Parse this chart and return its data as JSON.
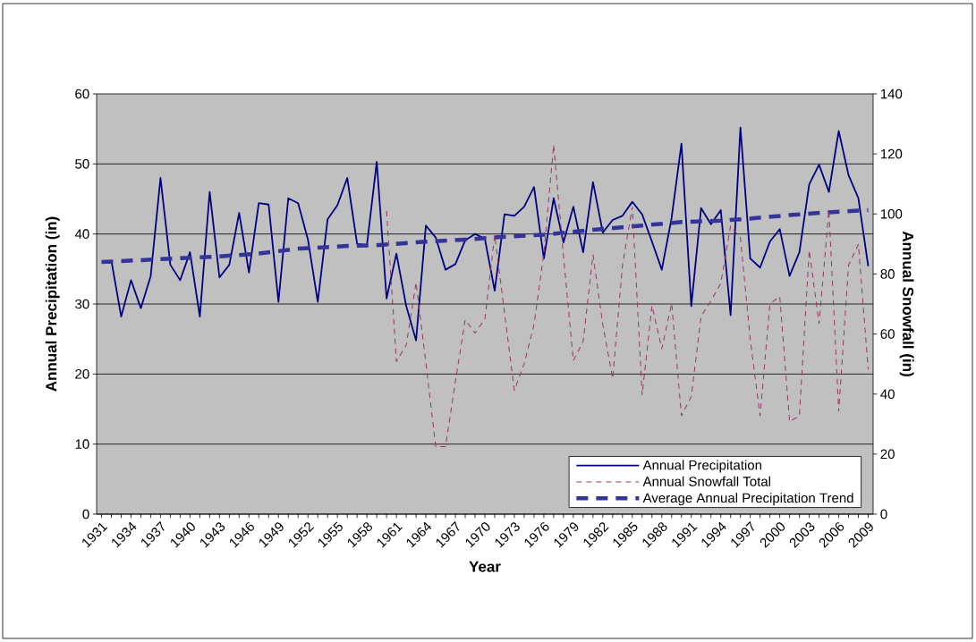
{
  "chart_data": {
    "type": "line",
    "xlabel": "Year",
    "ylabel": "Annual Precipitation (in)",
    "y2label": "Annual Snowfall (in)",
    "x": [
      1932,
      1933,
      1934,
      1935,
      1936,
      1937,
      1938,
      1939,
      1940,
      1941,
      1942,
      1943,
      1944,
      1945,
      1946,
      1947,
      1948,
      1949,
      1950,
      1951,
      1952,
      1953,
      1954,
      1955,
      1956,
      1957,
      1958,
      1959,
      1960,
      1961,
      1962,
      1963,
      1964,
      1965,
      1966,
      1967,
      1968,
      1969,
      1970,
      1971,
      1972,
      1973,
      1974,
      1975,
      1976,
      1977,
      1978,
      1979,
      1980,
      1981,
      1982,
      1983,
      1984,
      1985,
      1986,
      1987,
      1988,
      1989,
      1990,
      1991,
      1992,
      1993,
      1994,
      1995,
      1996,
      1997,
      1998,
      1999,
      2000,
      2001,
      2002,
      2003,
      2004,
      2005,
      2006,
      2007,
      2008,
      2009
    ],
    "xlim": [
      1930.5,
      2009.5
    ],
    "xticks": [
      1931,
      {
        "value": 1932,
        "label": null
      },
      {
        "value": 1933,
        "label": null
      },
      1934,
      {
        "value": 1935,
        "label": null
      },
      {
        "value": 1936,
        "label": null
      },
      1937,
      {
        "value": 1938,
        "label": null
      },
      {
        "value": 1939,
        "label": null
      },
      1940,
      {
        "value": 1941,
        "label": null
      },
      {
        "value": 1942,
        "label": null
      },
      1943,
      {
        "value": 1944,
        "label": null
      },
      {
        "value": 1945,
        "label": null
      },
      1946,
      {
        "value": 1947,
        "label": null
      },
      {
        "value": 1948,
        "label": null
      },
      1949,
      {
        "value": 1950,
        "label": null
      },
      {
        "value": 1951,
        "label": null
      },
      1952,
      {
        "value": 1953,
        "label": null
      },
      {
        "value": 1954,
        "label": null
      },
      1955,
      {
        "value": 1956,
        "label": null
      },
      {
        "value": 1957,
        "label": null
      },
      1958,
      {
        "value": 1959,
        "label": null
      },
      {
        "value": 1960,
        "label": null
      },
      1961,
      {
        "value": 1962,
        "label": null
      },
      {
        "value": 1963,
        "label": null
      },
      1964,
      {
        "value": 1965,
        "label": null
      },
      {
        "value": 1966,
        "label": null
      },
      1967,
      {
        "value": 1968,
        "label": null
      },
      {
        "value": 1969,
        "label": null
      },
      1970,
      {
        "value": 1971,
        "label": null
      },
      {
        "value": 1972,
        "label": null
      },
      1973,
      {
        "value": 1974,
        "label": null
      },
      {
        "value": 1975,
        "label": null
      },
      1976,
      {
        "value": 1977,
        "label": null
      },
      {
        "value": 1978,
        "label": null
      },
      1979,
      {
        "value": 1980,
        "label": null
      },
      {
        "value": 1981,
        "label": null
      },
      1982,
      {
        "value": 1983,
        "label": null
      },
      {
        "value": 1984,
        "label": null
      },
      1985,
      {
        "value": 1986,
        "label": null
      },
      {
        "value": 1987,
        "label": null
      },
      1988,
      {
        "value": 1989,
        "label": null
      },
      {
        "value": 1990,
        "label": null
      },
      1991,
      {
        "value": 1992,
        "label": null
      },
      {
        "value": 1993,
        "label": null
      },
      1994,
      {
        "value": 1995,
        "label": null
      },
      {
        "value": 1996,
        "label": null
      },
      1997,
      {
        "value": 1998,
        "label": null
      },
      {
        "value": 1999,
        "label": null
      },
      2000,
      {
        "value": 2001,
        "label": null
      },
      {
        "value": 2002,
        "label": null
      },
      2003,
      {
        "value": 2004,
        "label": null
      },
      {
        "value": 2005,
        "label": null
      },
      2006,
      {
        "value": 2007,
        "label": null
      },
      {
        "value": 2008,
        "label": null
      },
      2009
    ],
    "ylim": [
      0,
      60
    ],
    "yticks": [
      0,
      10,
      20,
      30,
      40,
      50,
      60
    ],
    "y2lim": [
      0,
      140
    ],
    "y2ticks": [
      0,
      20,
      40,
      60,
      80,
      100,
      120,
      140
    ],
    "grid": "y",
    "legend": "bottom right",
    "series": [
      {
        "name": "Annual Precipitation",
        "color": "#000080",
        "line_style": "solid",
        "values": [
          36.2,
          28.2,
          33.4,
          29.4,
          34.0,
          48.0,
          35.6,
          33.4,
          37.4,
          28.2,
          46.0,
          33.8,
          35.6,
          43.0,
          34.5,
          44.4,
          44.2,
          30.3,
          45.1,
          44.4,
          39.2,
          30.3,
          42.1,
          44.1,
          48.0,
          38.6,
          38.4,
          50.3,
          30.8,
          37.2,
          29.7,
          24.8,
          41.2,
          39.5,
          34.9,
          35.7,
          39.1,
          40.0,
          39.3,
          31.9,
          42.8,
          42.6,
          43.9,
          46.7,
          36.5,
          45.1,
          38.8,
          43.9,
          37.4,
          47.4,
          40.2,
          42.0,
          42.6,
          44.6,
          42.8,
          38.9,
          34.9,
          42.3,
          52.9,
          29.7,
          43.7,
          41.4,
          43.4,
          28.4,
          55.2,
          36.5,
          35.2,
          38.9,
          40.7,
          34.0,
          37.4,
          47.1,
          49.9,
          46.0,
          54.7,
          48.4,
          45.1,
          35.4
        ]
      },
      {
        "name": "Annual Snowfall Total",
        "color": "#993366",
        "line_style": "dashed",
        "axis": "y2",
        "values": [
          null,
          null,
          null,
          null,
          null,
          null,
          null,
          null,
          null,
          null,
          null,
          null,
          null,
          null,
          null,
          null,
          null,
          null,
          null,
          null,
          null,
          null,
          null,
          null,
          null,
          null,
          null,
          null,
          101.0,
          50.9,
          56.3,
          77.2,
          50.3,
          22.5,
          22.5,
          44.2,
          64.8,
          60.3,
          65.0,
          92.9,
          67.0,
          41.2,
          50.1,
          63.1,
          86.9,
          123.1,
          85.9,
          51.1,
          57.6,
          86.4,
          63.1,
          45.2,
          82.9,
          102.3,
          39.7,
          69.5,
          55.1,
          70.2,
          32.8,
          39.2,
          66.0,
          71.0,
          76.9,
          96.0,
          92.0,
          58.1,
          32.8,
          70.0,
          72.5,
          30.8,
          32.8,
          87.9,
          63.5,
          101.3,
          34.3,
          82.9,
          89.9,
          48.2
        ]
      },
      {
        "name": "Average Annual Precipitation Trend",
        "color": "#333399",
        "line_style": "dashed",
        "type": "line",
        "x": [
          1931,
          1937,
          1943,
          1947,
          1951,
          1956,
          1959,
          1964,
          1968,
          1971,
          1976,
          1981,
          1986,
          1990,
          1994,
          1997,
          2001,
          2005,
          2009
        ],
        "values": [
          36.0,
          36.4,
          36.8,
          37.2,
          37.9,
          38.3,
          38.4,
          38.9,
          39.2,
          39.5,
          39.9,
          40.6,
          41.2,
          41.7,
          41.9,
          42.2,
          42.7,
          43.1,
          43.4
        ]
      }
    ]
  }
}
